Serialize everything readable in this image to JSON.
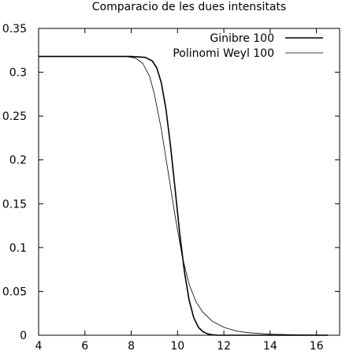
{
  "chart_data": {
    "type": "line",
    "title": "Comparacio de les dues intensitats",
    "xlabel": "",
    "ylabel": "",
    "xlim": [
      4,
      17
    ],
    "ylim": [
      0,
      0.35
    ],
    "x_ticks": [
      4,
      6,
      8,
      10,
      12,
      14,
      16
    ],
    "x_tick_labels": [
      "4",
      "6",
      "8",
      "10",
      "12",
      "14",
      "16"
    ],
    "y_ticks": [
      0,
      0.05,
      0.1,
      0.15,
      0.2,
      0.25,
      0.3,
      0.35
    ],
    "y_tick_labels": [
      "0",
      "0.05",
      "0.1",
      "0.15",
      "0.2",
      "0.25",
      "0.3",
      "0.35"
    ],
    "grid": false,
    "legend": "top-right",
    "series": [
      {
        "name": "Ginibre 100",
        "color": "#000000",
        "line": "thick",
        "x": [
          4.0,
          8.0,
          8.6,
          8.9,
          9.1,
          9.3,
          9.5,
          9.7,
          9.9,
          10.1,
          10.3,
          10.5,
          10.7,
          10.9,
          11.1,
          11.3,
          11.5,
          11.7,
          12.0,
          16.5
        ],
        "y": [
          0.318,
          0.318,
          0.317,
          0.313,
          0.305,
          0.288,
          0.258,
          0.215,
          0.165,
          0.115,
          0.072,
          0.04,
          0.02,
          0.009,
          0.004,
          0.0015,
          0.0005,
          0.0001,
          0.0,
          0.0
        ]
      },
      {
        "name": "Polinomi Weyl 100",
        "color": "#000000",
        "line": "thin",
        "x": [
          4.0,
          7.8,
          8.2,
          8.5,
          8.8,
          9.0,
          9.3,
          9.6,
          9.9,
          10.2,
          10.5,
          10.8,
          11.1,
          11.5,
          12.0,
          12.5,
          13.0,
          14.0,
          15.0,
          16.5
        ],
        "y": [
          0.318,
          0.318,
          0.316,
          0.31,
          0.295,
          0.275,
          0.235,
          0.185,
          0.135,
          0.09,
          0.058,
          0.038,
          0.026,
          0.016,
          0.009,
          0.005,
          0.003,
          0.0012,
          0.0005,
          0.0002
        ]
      }
    ]
  }
}
